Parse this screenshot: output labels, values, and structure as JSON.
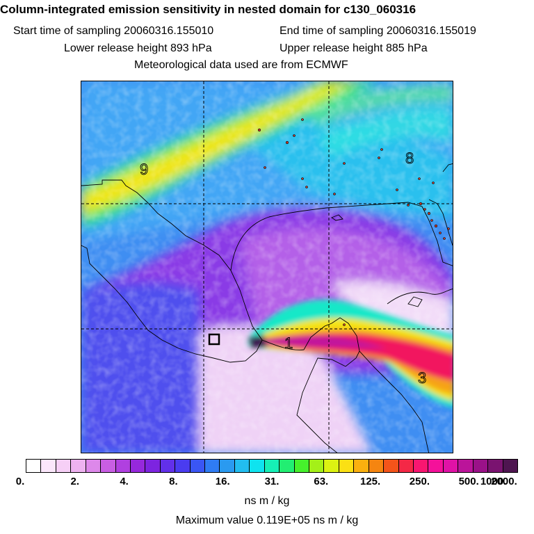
{
  "header": {
    "title": "Column-integrated emission sensitivity in nested domain for c130_060316",
    "start_label": "Start time of sampling 20060316.155010",
    "end_label": "End time of sampling 20060316.155019",
    "lower_label": "Lower release height  893 hPa",
    "upper_label": "Upper release height  885 hPa",
    "met_label": "Meteorological data used are from ECMWF"
  },
  "map": {
    "region_labels": [
      "9",
      "8",
      "1",
      "3"
    ],
    "receptor_marker": "square-marker"
  },
  "colorbar": {
    "colors": [
      "#ffffff",
      "#fbe7fb",
      "#f6cff6",
      "#eeb2f0",
      "#dd88ea",
      "#c85ee3",
      "#b040e0",
      "#9628dc",
      "#7d24e0",
      "#6230ea",
      "#4a3cf0",
      "#3a56f4",
      "#2f7cf4",
      "#2a9af0",
      "#22bdf0",
      "#0fe3ef",
      "#16f0b6",
      "#22ee72",
      "#46f02c",
      "#a4f018",
      "#dcf212",
      "#fbe014",
      "#fab00f",
      "#f58510",
      "#f4541a",
      "#f42846",
      "#f81670",
      "#f4119a",
      "#e012a6",
      "#bb149a",
      "#9a1188",
      "#7a1370",
      "#4e1550"
    ],
    "ticks": [
      {
        "label": "0.",
        "frac": 0.0
      },
      {
        "label": "2.",
        "frac": 0.1
      },
      {
        "label": "4.",
        "frac": 0.2
      },
      {
        "label": "8.",
        "frac": 0.3
      },
      {
        "label": "16.",
        "frac": 0.4
      },
      {
        "label": "31.",
        "frac": 0.5
      },
      {
        "label": "63.",
        "frac": 0.6
      },
      {
        "label": "125.",
        "frac": 0.7
      },
      {
        "label": "250.",
        "frac": 0.8
      },
      {
        "label": "500.",
        "frac": 0.9
      },
      {
        "label": "1000.",
        "frac": 0.95
      },
      {
        "label": "2000.",
        "frac": 1.0
      }
    ],
    "units": "ns m / kg",
    "max_value_text": "Maximum value  0.119E+05 ns m / kg"
  }
}
